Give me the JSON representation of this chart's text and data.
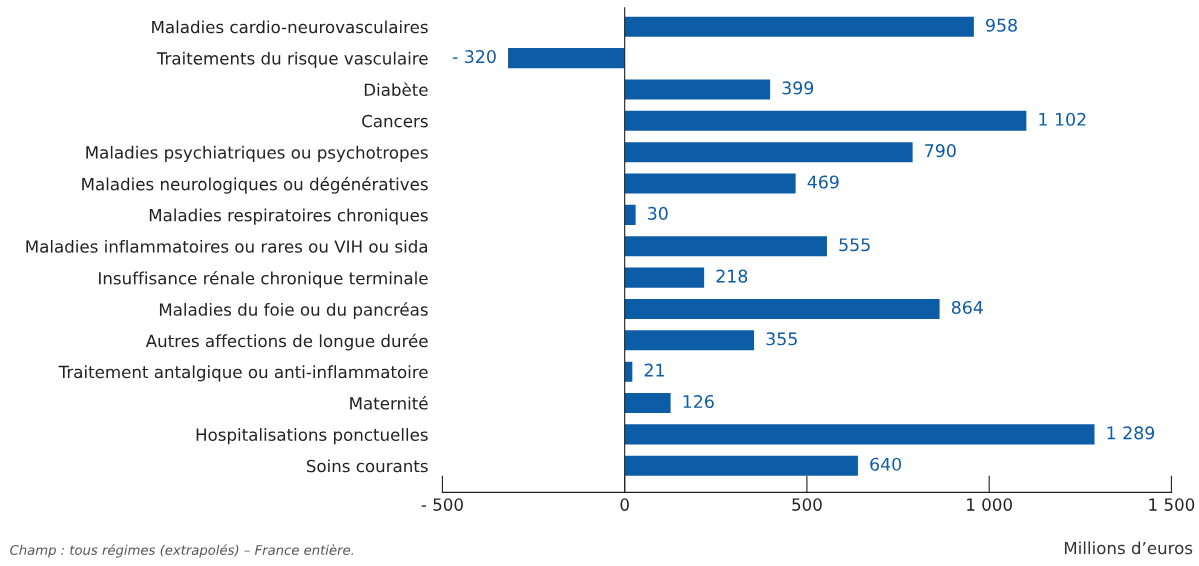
{
  "chart_data": {
    "type": "bar",
    "orientation": "horizontal",
    "xlabel": "Millions d’euros",
    "categories": [
      "Maladies cardio-neurovasculaires",
      "Traitements du risque vasculaire",
      "Diabète",
      "Cancers",
      "Maladies psychiatriques ou psychotropes",
      "Maladies neurologiques ou dégénératives",
      "Maladies respiratoires chroniques",
      "Maladies inflammatoires ou rares ou VIH ou sida",
      "Insuffisance rénale chronique terminale",
      "Maladies du foie ou du pancréas",
      "Autres affections de longue durée",
      "Traitement antalgique ou anti-inflammatoire",
      "Maternité",
      "Hospitalisations ponctuelles",
      "Soins courants"
    ],
    "values": [
      958,
      -320,
      399,
      1102,
      790,
      469,
      30,
      555,
      218,
      864,
      355,
      21,
      126,
      1289,
      640
    ],
    "value_labels": [
      "958",
      "- 320",
      "399",
      "1 102",
      "790",
      "469",
      "30",
      "555",
      "218",
      "864",
      "355",
      "21",
      "126",
      "1 289",
      "640"
    ],
    "color": "#0d5ca6",
    "xlim": [
      -500,
      1500
    ],
    "xticks": [
      {
        "value": -500,
        "label": "- 500"
      },
      0,
      500,
      {
        "value": 1000,
        "label": "1 000"
      },
      {
        "value": 1500,
        "label": "1 500"
      }
    ],
    "legend": false,
    "annotations": [
      "Champ : tous régimes (extrapolés) – France entière."
    ]
  }
}
